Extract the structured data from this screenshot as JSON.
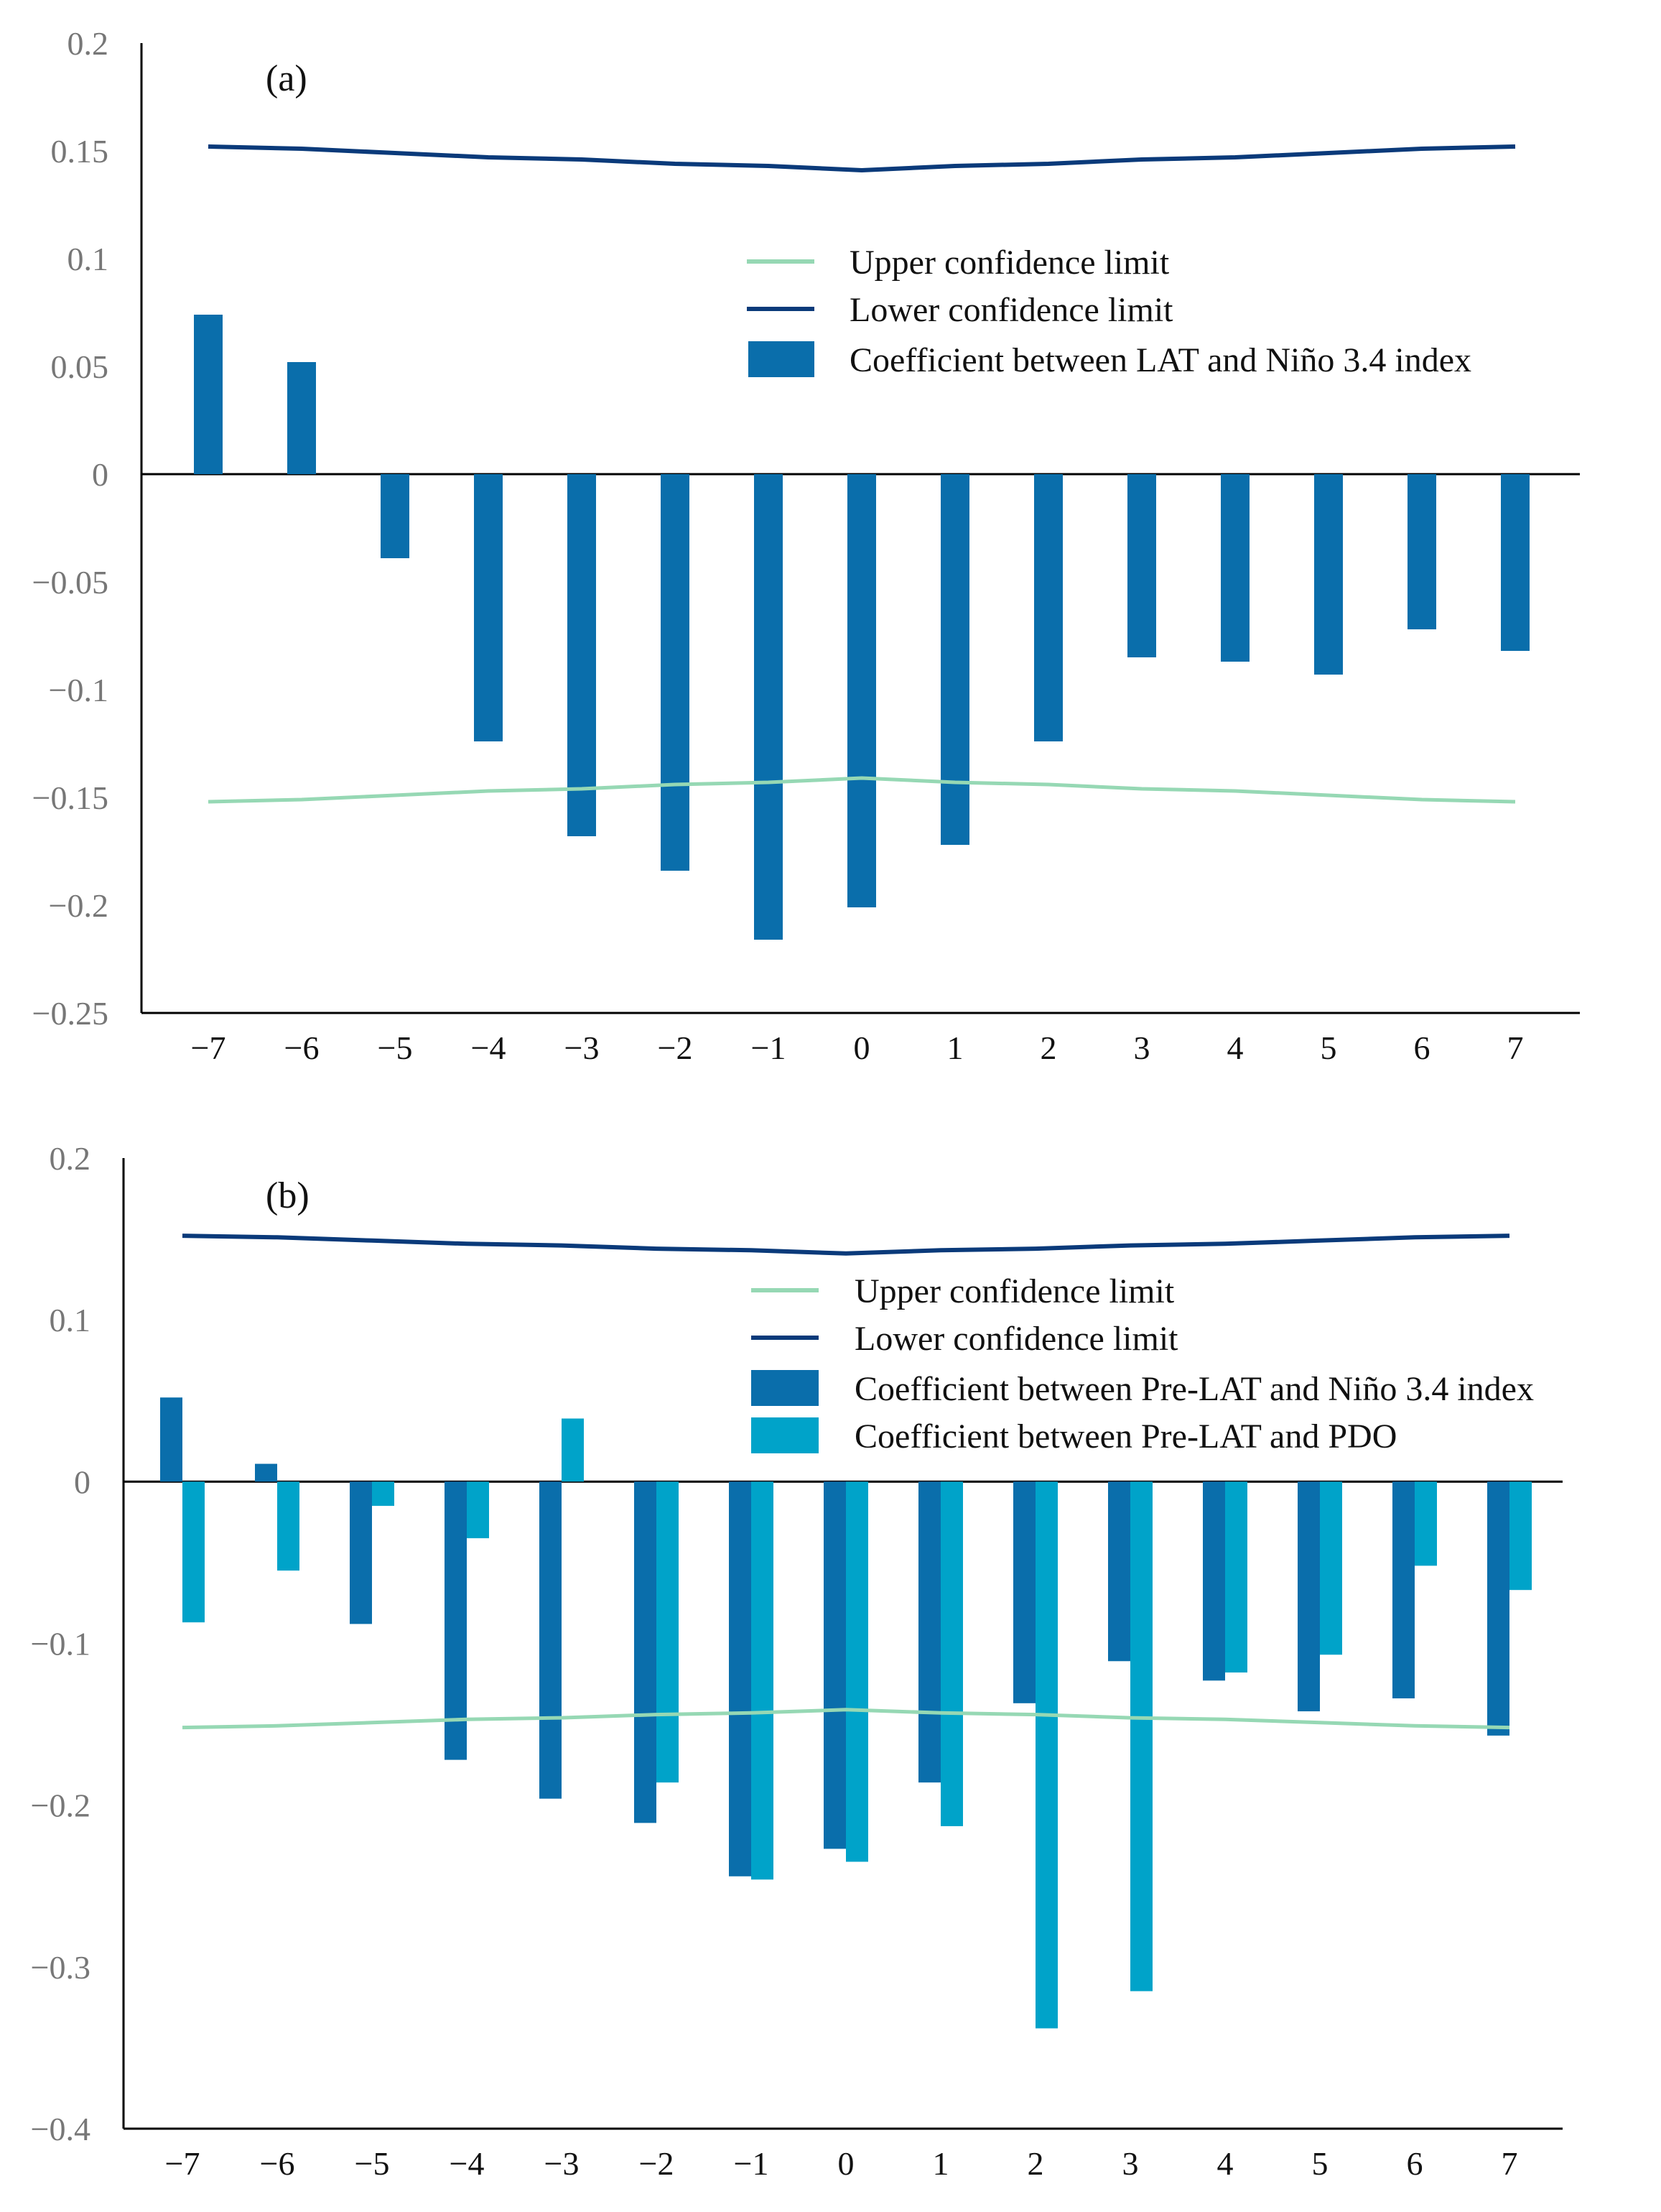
{
  "colors": {
    "upper_limit": "#96d8b4",
    "lower_limit": "#0a3a7a",
    "bar_nino": "#0a6eab",
    "bar_pdo": "#00a3c9",
    "axis": "#000000"
  },
  "chart_data": [
    {
      "type": "bar",
      "panel_label": "(a)",
      "categories": [
        "−7",
        "−6",
        "−5",
        "−4",
        "−3",
        "−2",
        "−1",
        "0",
        "1",
        "2",
        "3",
        "4",
        "5",
        "6",
        "7"
      ],
      "ylim": [
        -0.25,
        0.2
      ],
      "yticks": [
        0.2,
        0.15,
        0.1,
        0.05,
        0,
        -0.05,
        -0.1,
        -0.15,
        -0.2,
        -0.25
      ],
      "ytick_labels": [
        "0.2",
        "0.15",
        "0.1",
        "0.05",
        "0",
        "−0.05",
        "−0.1",
        "−0.15",
        "−0.2",
        "−0.25"
      ],
      "series": [
        {
          "name": "Coefficient between LAT and Niño 3.4 index",
          "values": [
            0.074,
            0.052,
            -0.039,
            -0.124,
            -0.168,
            -0.184,
            -0.216,
            -0.201,
            -0.172,
            -0.124,
            -0.085,
            -0.087,
            -0.093,
            -0.072,
            -0.082
          ]
        }
      ],
      "lines": [
        {
          "name": "Upper confidence limit",
          "values": [
            -0.152,
            -0.151,
            -0.149,
            -0.147,
            -0.146,
            -0.144,
            -0.143,
            -0.141,
            -0.143,
            -0.144,
            -0.146,
            -0.147,
            -0.149,
            -0.151,
            -0.152
          ]
        },
        {
          "name": "Lower confidence limit",
          "values": [
            0.152,
            0.151,
            0.149,
            0.147,
            0.146,
            0.144,
            0.143,
            0.141,
            0.143,
            0.144,
            0.146,
            0.147,
            0.149,
            0.151,
            0.152
          ]
        }
      ],
      "legend": [
        "Upper confidence limit",
        "Lower confidence limit",
        "Coefficient between LAT and Niño 3.4 index"
      ]
    },
    {
      "type": "bar",
      "panel_label": "(b)",
      "categories": [
        "−7",
        "−6",
        "−5",
        "−4",
        "−3",
        "−2",
        "−1",
        "0",
        "1",
        "2",
        "3",
        "4",
        "5",
        "6",
        "7"
      ],
      "ylim": [
        -0.4,
        0.2
      ],
      "yticks": [
        0.2,
        0.1,
        0,
        -0.1,
        -0.2,
        -0.3,
        -0.4
      ],
      "ytick_labels": [
        "0.2",
        "0.1",
        "0",
        "−0.1",
        "−0.2",
        "−0.3",
        "−0.4"
      ],
      "series": [
        {
          "name": "Coefficient between Pre-LAT and Niño 3.4 index",
          "values": [
            0.052,
            0.011,
            -0.088,
            -0.172,
            -0.196,
            -0.211,
            -0.244,
            -0.227,
            -0.186,
            -0.137,
            -0.111,
            -0.123,
            -0.142,
            -0.134,
            -0.157
          ]
        },
        {
          "name": "Coefficient between Pre-LAT and PDO",
          "values": [
            -0.087,
            -0.055,
            -0.015,
            -0.035,
            0.039,
            -0.186,
            -0.246,
            -0.235,
            -0.213,
            -0.338,
            -0.315,
            -0.118,
            -0.107,
            -0.052,
            -0.067
          ]
        }
      ],
      "lines": [
        {
          "name": "Upper confidence limit",
          "values": [
            -0.152,
            -0.151,
            -0.149,
            -0.147,
            -0.146,
            -0.144,
            -0.143,
            -0.141,
            -0.143,
            -0.144,
            -0.146,
            -0.147,
            -0.149,
            -0.151,
            -0.152
          ]
        },
        {
          "name": "Lower confidence limit",
          "values": [
            0.152,
            0.151,
            0.149,
            0.147,
            0.146,
            0.144,
            0.143,
            0.141,
            0.143,
            0.144,
            0.146,
            0.147,
            0.149,
            0.151,
            0.152
          ]
        }
      ],
      "legend": [
        "Upper confidence limit",
        "Lower confidence limit",
        "Coefficient between Pre-LAT and Niño 3.4 index",
        "Coefficient between Pre-LAT and PDO"
      ]
    }
  ]
}
